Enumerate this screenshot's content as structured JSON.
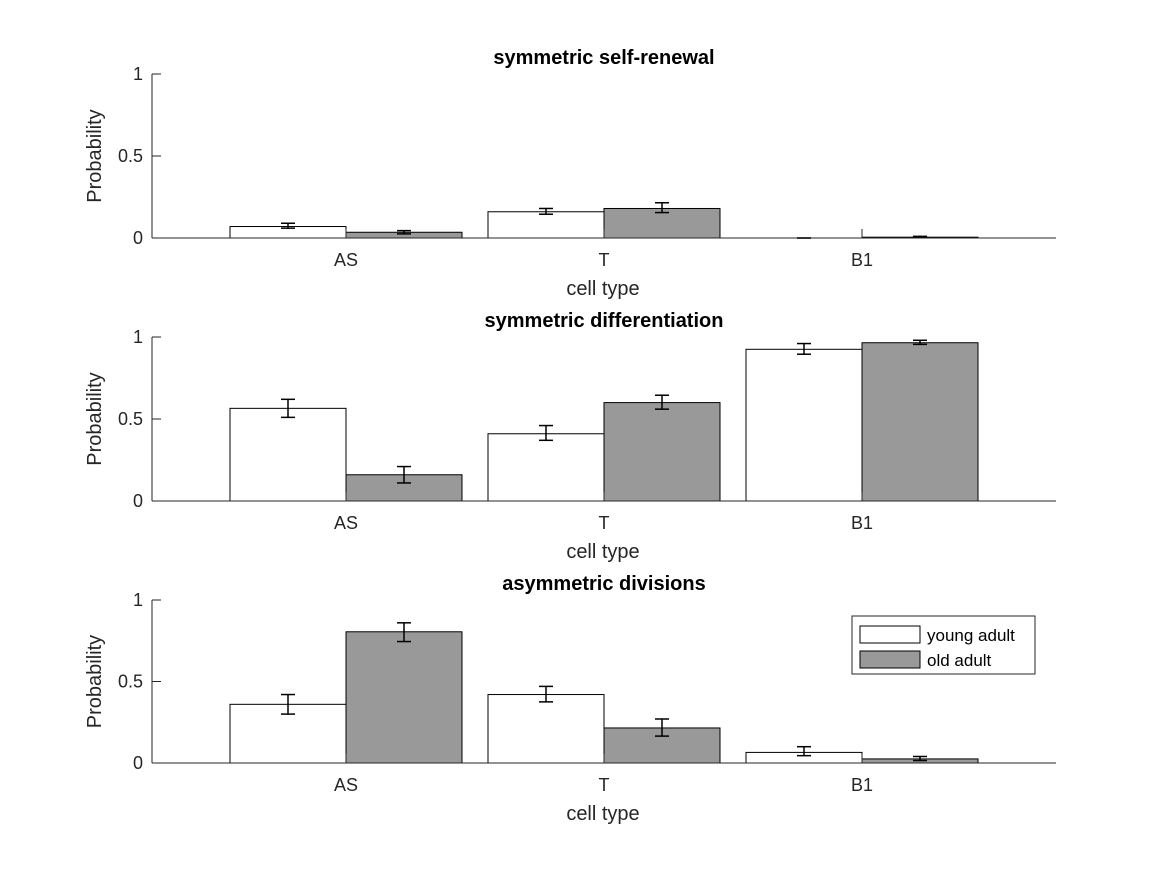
{
  "chart_data": [
    {
      "type": "bar",
      "title": "symmetric self-renewal",
      "xlabel": "cell type",
      "ylabel": "Probability",
      "categories": [
        "AS",
        "T",
        "B1"
      ],
      "ylim": [
        0,
        1
      ],
      "yticks": [
        0,
        0.5,
        1
      ],
      "ytick_labels": [
        "0",
        "0.5",
        "1"
      ],
      "grid": false,
      "series": [
        {
          "name": "young adult",
          "values": [
            0.07,
            0.16,
            0.0
          ],
          "err_low": [
            0.06,
            0.145,
            0.0
          ],
          "err_high": [
            0.09,
            0.18,
            0.0
          ]
        },
        {
          "name": "old adult",
          "values": [
            0.035,
            0.18,
            0.005
          ],
          "err_low": [
            0.025,
            0.155,
            0.002
          ],
          "err_high": [
            0.045,
            0.215,
            0.01
          ]
        }
      ]
    },
    {
      "type": "bar",
      "title": "symmetric differentiation",
      "xlabel": "cell type",
      "ylabel": "Probability",
      "categories": [
        "AS",
        "T",
        "B1"
      ],
      "ylim": [
        0,
        1
      ],
      "yticks": [
        0,
        0.5,
        1
      ],
      "ytick_labels": [
        "0",
        "0.5",
        "1"
      ],
      "grid": false,
      "series": [
        {
          "name": "young adult",
          "values": [
            0.565,
            0.41,
            0.925
          ],
          "err_low": [
            0.51,
            0.37,
            0.895
          ],
          "err_high": [
            0.62,
            0.46,
            0.96
          ]
        },
        {
          "name": "old adult",
          "values": [
            0.16,
            0.6,
            0.965
          ],
          "err_low": [
            0.11,
            0.56,
            0.955
          ],
          "err_high": [
            0.21,
            0.645,
            0.98
          ]
        }
      ]
    },
    {
      "type": "bar",
      "title": "asymmetric divisions",
      "xlabel": "cell type",
      "ylabel": "Probability",
      "categories": [
        "AS",
        "T",
        "B1"
      ],
      "ylim": [
        0,
        1
      ],
      "yticks": [
        0,
        0.5,
        1
      ],
      "ytick_labels": [
        "0",
        "0.5",
        "1"
      ],
      "grid": false,
      "legend": {
        "placement": "top-right",
        "entries": [
          "young adult",
          "old adult"
        ]
      },
      "series": [
        {
          "name": "young adult",
          "values": [
            0.36,
            0.42,
            0.065
          ],
          "err_low": [
            0.3,
            0.375,
            0.045
          ],
          "err_high": [
            0.42,
            0.47,
            0.1
          ]
        },
        {
          "name": "old adult",
          "values": [
            0.805,
            0.215,
            0.025
          ],
          "err_low": [
            0.745,
            0.165,
            0.015
          ],
          "err_high": [
            0.86,
            0.27,
            0.04
          ]
        }
      ]
    }
  ],
  "colors": {
    "young_adult_fill": "#ffffff",
    "old_adult_fill": "#999999",
    "bar_edge": "#000000",
    "axis": "#262626"
  }
}
